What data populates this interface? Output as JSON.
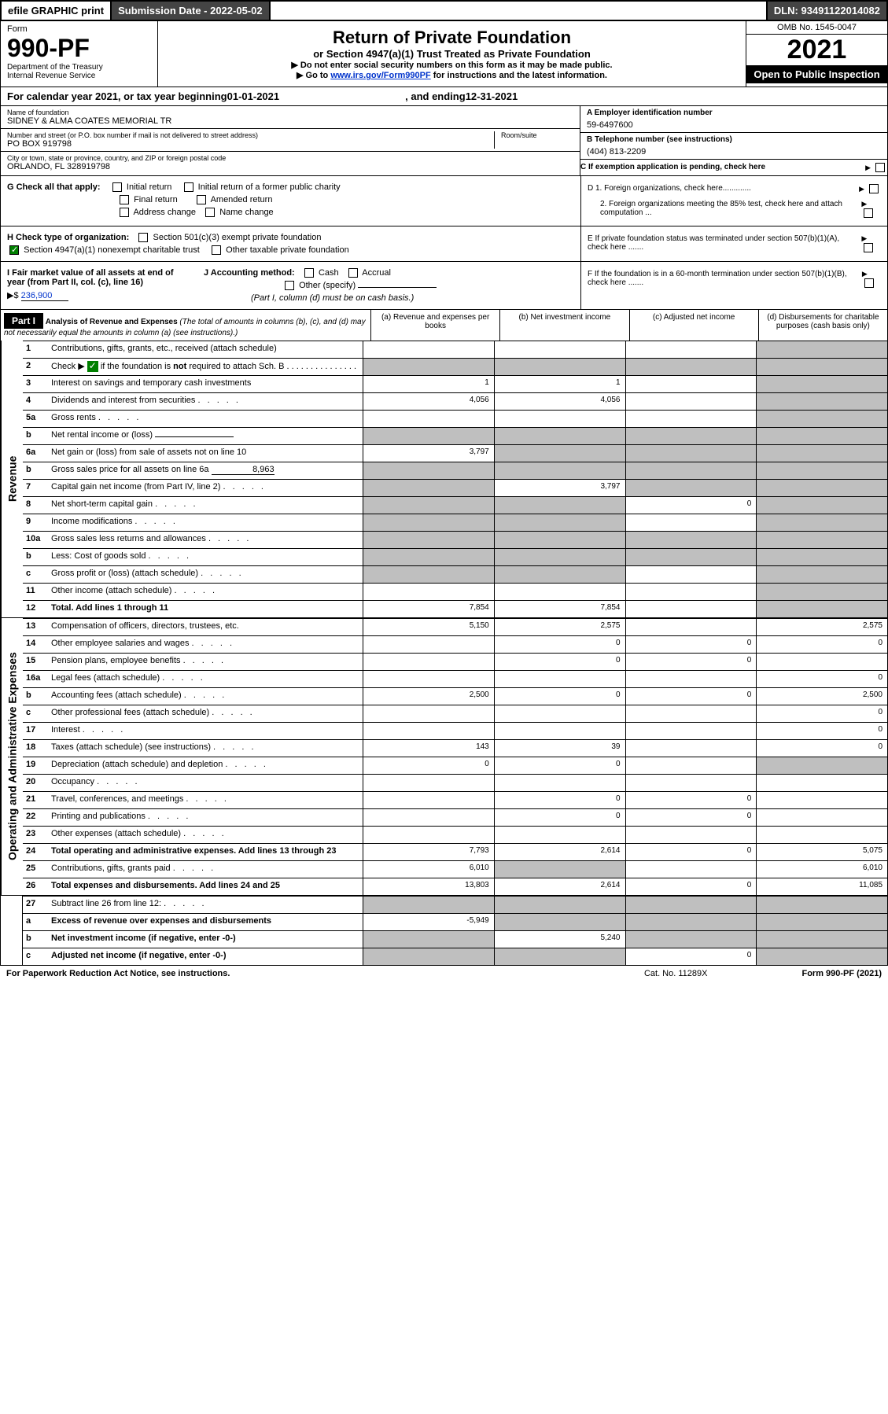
{
  "top_bar": {
    "efile": "efile GRAPHIC print",
    "submission_label": "Submission Date - 2022-05-02",
    "dln": "DLN: 93491122014082"
  },
  "header": {
    "form_word": "Form",
    "form_num": "990-PF",
    "dept": "Department of the Treasury",
    "irs": "Internal Revenue Service",
    "title": "Return of Private Foundation",
    "subtitle": "or Section 4947(a)(1) Trust Treated as Private Foundation",
    "instr1": "▶ Do not enter social security numbers on this form as it may be made public.",
    "instr2_prefix": "▶ Go to ",
    "instr2_link": "www.irs.gov/Form990PF",
    "instr2_suffix": " for instructions and the latest information.",
    "omb": "OMB No. 1545-0047",
    "year": "2021",
    "open": "Open to Public Inspection"
  },
  "calendar": {
    "text_prefix": "For calendar year 2021, or tax year beginning ",
    "begin": "01-01-2021",
    "mid": ", and ending ",
    "end": "12-31-2021"
  },
  "foundation": {
    "name_label": "Name of foundation",
    "name": "SIDNEY & ALMA COATES MEMORIAL TR",
    "addr_label": "Number and street (or P.O. box number if mail is not delivered to street address)",
    "addr": "PO BOX 919798",
    "room_label": "Room/suite",
    "city_label": "City or town, state or province, country, and ZIP or foreign postal code",
    "city": "ORLANDO, FL  328919798",
    "ein_label": "A Employer identification number",
    "ein": "59-6497600",
    "phone_label": "B Telephone number (see instructions)",
    "phone": "(404) 813-2209",
    "c_label": "C If exemption application is pending, check here",
    "d1": "D 1. Foreign organizations, check here.............",
    "d2": "2. Foreign organizations meeting the 85% test, check here and attach computation ...",
    "e_label": "E  If private foundation status was terminated under section 507(b)(1)(A), check here .......",
    "f_label": "F  If the foundation is in a 60-month termination under section 507(b)(1)(B), check here .......",
    "g_label": "G Check all that apply:",
    "g_options": [
      "Initial return",
      "Initial return of a former public charity",
      "Final return",
      "Amended return",
      "Address change",
      "Name change"
    ],
    "h_label": "H Check type of organization:",
    "h1": "Section 501(c)(3) exempt private foundation",
    "h2": "Section 4947(a)(1) nonexempt charitable trust",
    "h3": "Other taxable private foundation",
    "i_label": "I Fair market value of all assets at end of year (from Part II, col. (c), line 16)",
    "i_value": "236,900",
    "j_label": "J Accounting method:",
    "j_cash": "Cash",
    "j_accrual": "Accrual",
    "j_other": "Other (specify)",
    "j_note": "(Part I, column (d) must be on cash basis.)"
  },
  "part1": {
    "label": "Part I",
    "title": "Analysis of Revenue and Expenses",
    "note": "(The total of amounts in columns (b), (c), and (d) may not necessarily equal the amounts in column (a) (see instructions).)",
    "cols": {
      "a": "(a) Revenue and expenses per books",
      "b": "(b) Net investment income",
      "c": "(c) Adjusted net income",
      "d": "(d) Disbursements for charitable purposes (cash basis only)"
    }
  },
  "section_labels": {
    "revenue": "Revenue",
    "expenses": "Operating and Administrative Expenses"
  },
  "revenue_rows": [
    {
      "num": "1",
      "desc": "Contributions, gifts, grants, etc., received (attach schedule)",
      "a": "",
      "b": "",
      "c": "",
      "d": "shaded"
    },
    {
      "num": "2",
      "desc": "Check ▶ [✓] if the foundation is not required to attach Sch. B",
      "a": "shaded",
      "b": "shaded",
      "c": "shaded",
      "d": "shaded",
      "has_check": true
    },
    {
      "num": "3",
      "desc": "Interest on savings and temporary cash investments",
      "a": "1",
      "b": "1",
      "c": "",
      "d": "shaded"
    },
    {
      "num": "4",
      "desc": "Dividends and interest from securities",
      "a": "4,056",
      "b": "4,056",
      "c": "",
      "d": "shaded"
    },
    {
      "num": "5a",
      "desc": "Gross rents",
      "a": "",
      "b": "",
      "c": "",
      "d": "shaded"
    },
    {
      "num": "b",
      "desc": "Net rental income or (loss)",
      "a": "shaded",
      "b": "shaded",
      "c": "shaded",
      "d": "shaded",
      "underline": true
    },
    {
      "num": "6a",
      "desc": "Net gain or (loss) from sale of assets not on line 10",
      "a": "3,797",
      "b": "shaded",
      "c": "shaded",
      "d": "shaded"
    },
    {
      "num": "b",
      "desc": "Gross sales price for all assets on line 6a",
      "a": "shaded",
      "b": "shaded",
      "c": "shaded",
      "d": "shaded",
      "inline_val": "8,963"
    },
    {
      "num": "7",
      "desc": "Capital gain net income (from Part IV, line 2)",
      "a": "shaded",
      "b": "3,797",
      "c": "shaded",
      "d": "shaded"
    },
    {
      "num": "8",
      "desc": "Net short-term capital gain",
      "a": "shaded",
      "b": "shaded",
      "c": "0",
      "d": "shaded"
    },
    {
      "num": "9",
      "desc": "Income modifications",
      "a": "shaded",
      "b": "shaded",
      "c": "",
      "d": "shaded"
    },
    {
      "num": "10a",
      "desc": "Gross sales less returns and allowances",
      "a": "shaded",
      "b": "shaded",
      "c": "shaded",
      "d": "shaded"
    },
    {
      "num": "b",
      "desc": "Less: Cost of goods sold",
      "a": "shaded",
      "b": "shaded",
      "c": "shaded",
      "d": "shaded"
    },
    {
      "num": "c",
      "desc": "Gross profit or (loss) (attach schedule)",
      "a": "shaded",
      "b": "shaded",
      "c": "",
      "d": "shaded"
    },
    {
      "num": "11",
      "desc": "Other income (attach schedule)",
      "a": "",
      "b": "",
      "c": "",
      "d": "shaded"
    },
    {
      "num": "12",
      "desc": "Total. Add lines 1 through 11",
      "bold": true,
      "a": "7,854",
      "b": "7,854",
      "c": "",
      "d": "shaded"
    }
  ],
  "expense_rows": [
    {
      "num": "13",
      "desc": "Compensation of officers, directors, trustees, etc.",
      "a": "5,150",
      "b": "2,575",
      "c": "",
      "d": "2,575"
    },
    {
      "num": "14",
      "desc": "Other employee salaries and wages",
      "a": "",
      "b": "0",
      "c": "0",
      "d": "0"
    },
    {
      "num": "15",
      "desc": "Pension plans, employee benefits",
      "a": "",
      "b": "0",
      "c": "0",
      "d": ""
    },
    {
      "num": "16a",
      "desc": "Legal fees (attach schedule)",
      "a": "",
      "b": "",
      "c": "",
      "d": "0"
    },
    {
      "num": "b",
      "desc": "Accounting fees (attach schedule)",
      "a": "2,500",
      "b": "0",
      "c": "0",
      "d": "2,500"
    },
    {
      "num": "c",
      "desc": "Other professional fees (attach schedule)",
      "a": "",
      "b": "",
      "c": "",
      "d": "0"
    },
    {
      "num": "17",
      "desc": "Interest",
      "a": "",
      "b": "",
      "c": "",
      "d": "0"
    },
    {
      "num": "18",
      "desc": "Taxes (attach schedule) (see instructions)",
      "a": "143",
      "b": "39",
      "c": "",
      "d": "0"
    },
    {
      "num": "19",
      "desc": "Depreciation (attach schedule) and depletion",
      "a": "0",
      "b": "0",
      "c": "",
      "d": "shaded"
    },
    {
      "num": "20",
      "desc": "Occupancy",
      "a": "",
      "b": "",
      "c": "",
      "d": ""
    },
    {
      "num": "21",
      "desc": "Travel, conferences, and meetings",
      "a": "",
      "b": "0",
      "c": "0",
      "d": ""
    },
    {
      "num": "22",
      "desc": "Printing and publications",
      "a": "",
      "b": "0",
      "c": "0",
      "d": ""
    },
    {
      "num": "23",
      "desc": "Other expenses (attach schedule)",
      "a": "",
      "b": "",
      "c": "",
      "d": ""
    },
    {
      "num": "24",
      "desc": "Total operating and administrative expenses. Add lines 13 through 23",
      "bold": true,
      "a": "7,793",
      "b": "2,614",
      "c": "0",
      "d": "5,075"
    },
    {
      "num": "25",
      "desc": "Contributions, gifts, grants paid",
      "a": "6,010",
      "b": "shaded",
      "c": "",
      "d": "6,010"
    },
    {
      "num": "26",
      "desc": "Total expenses and disbursements. Add lines 24 and 25",
      "bold": true,
      "a": "13,803",
      "b": "2,614",
      "c": "0",
      "d": "11,085"
    }
  ],
  "bottom_rows": [
    {
      "num": "27",
      "desc": "Subtract line 26 from line 12:",
      "a": "shaded",
      "b": "shaded",
      "c": "shaded",
      "d": "shaded"
    },
    {
      "num": "a",
      "desc": "Excess of revenue over expenses and disbursements",
      "bold": true,
      "a": "-5,949",
      "b": "shaded",
      "c": "shaded",
      "d": "shaded"
    },
    {
      "num": "b",
      "desc": "Net investment income (if negative, enter -0-)",
      "bold": true,
      "a": "shaded",
      "b": "5,240",
      "c": "shaded",
      "d": "shaded"
    },
    {
      "num": "c",
      "desc": "Adjusted net income (if negative, enter -0-)",
      "bold": true,
      "a": "shaded",
      "b": "shaded",
      "c": "0",
      "d": "shaded"
    }
  ],
  "footer": {
    "left": "For Paperwork Reduction Act Notice, see instructions.",
    "center": "Cat. No. 11289X",
    "right": "Form 990-PF (2021)"
  },
  "colors": {
    "header_dark": "#444444",
    "shaded_cell": "#bfbfbf",
    "link": "#0033cc",
    "check_green": "#008000"
  }
}
